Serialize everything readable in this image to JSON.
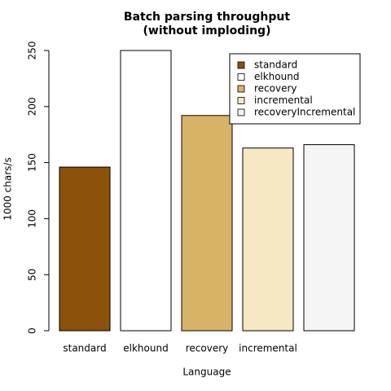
{
  "chart_data": {
    "type": "bar",
    "title": "Batch parsing throughput",
    "subtitle": "(without imploding)",
    "x_label": "Language",
    "y_label": "1000 chars/s",
    "categories": [
      "standard",
      "elkhound",
      "recovery",
      "incremental",
      null
    ],
    "values": [
      146,
      250,
      192,
      163,
      166
    ],
    "colors": [
      "#8C510A",
      "#FFFFFF",
      "#D8B365",
      "#F6E8C3",
      "#F5F5F5"
    ],
    "legend": [
      "standard",
      "elkhound",
      "recovery",
      "incremental",
      "recoveryIncremental"
    ],
    "legend_position": "top-right",
    "ylim": [
      0,
      250
    ],
    "yticks": [
      0,
      50,
      100,
      150,
      200,
      250
    ]
  }
}
